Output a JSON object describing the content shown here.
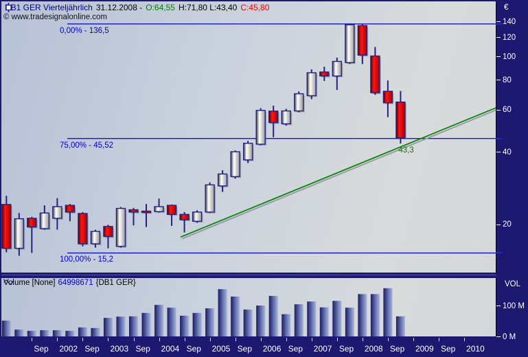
{
  "legend": {
    "symbol": "DB1 GER",
    "timeframe": "Vierteljährlich",
    "date": "31.12.2008 -",
    "open": "O:64,55",
    "high_low": "H:71,80 L:43,40",
    "close": "C:45,80"
  },
  "watermark": "© www.tradesignalonline.com",
  "volume_header": {
    "indicator": "Volume [None]",
    "value": "64998671",
    "instrument": "{DB1 GER}"
  },
  "colors": {
    "up_body_dark": "#3f3f3f",
    "up_body_light": "#ffffff",
    "up_body_edge": "#999999",
    "down_body_dark": "#4d0000",
    "down_body_light": "#ff1616",
    "down_body_edge": "#a80000",
    "outline": "#23237d",
    "vol_dark": "#1b1b62",
    "vol_light": "#a9b3d8",
    "fib_line": "#0000c0",
    "trend_line": "#0b840b",
    "trend_shadow": "#989da8",
    "axis_panel": "#1d1971",
    "axis_text": "#ffffff"
  },
  "chart_data": {
    "type": "candlestick",
    "title": "DB1 GER Vierteljährlich",
    "period": "quarterly",
    "price_axis": {
      "unit": "€",
      "scale": "log",
      "ticks": [
        140,
        120,
        100,
        80,
        60,
        40,
        20
      ]
    },
    "volume_axis": {
      "label": "VOL",
      "ticks": [
        {
          "label": "100 M",
          "value": 100
        },
        {
          "label": "0 M",
          "value": 0
        }
      ]
    },
    "x_axis": {
      "labels": [
        "Sep",
        "2002",
        "Sep",
        "2003",
        "Sep",
        "2004",
        "Sep",
        "2005",
        "Sep",
        "2006",
        "Sep",
        "2007",
        "Sep",
        "2008",
        "Sep",
        "2009",
        "Sep",
        "2010"
      ]
    },
    "fib_levels": [
      {
        "label": "0,00% - 136,5",
        "value": 136.5
      },
      {
        "label": "75,00% - 45,52",
        "value": 45.52
      },
      {
        "label": "100,00% - 15,2",
        "value": 15.2
      }
    ],
    "trendline": {
      "label": "43,3",
      "value_at_last_bar": 43.3,
      "from": {
        "bar": 13.7,
        "price": 17.7
      },
      "to": {
        "bar": 38.5,
        "price": 61.1
      }
    },
    "candles": [
      {
        "t": "2001-Q1",
        "o": 24.2,
        "h": 26.3,
        "l": 15.3,
        "c": 15.9,
        "v": 51
      },
      {
        "t": "2001-Q2",
        "o": 15.9,
        "h": 22.3,
        "l": 14.8,
        "c": 21.1,
        "v": 22
      },
      {
        "t": "2001-Q3",
        "o": 21.2,
        "h": 21.5,
        "l": 15.2,
        "c": 19.5,
        "v": 18
      },
      {
        "t": "2001-Q4",
        "o": 19.2,
        "h": 24.0,
        "l": 19.0,
        "c": 22.3,
        "v": 20
      },
      {
        "t": "2002-Q1",
        "o": 21.2,
        "h": 25.7,
        "l": 19.0,
        "c": 23.7,
        "v": 20
      },
      {
        "t": "2002-Q2",
        "o": 24.0,
        "h": 24.3,
        "l": 20.6,
        "c": 22.5,
        "v": 18
      },
      {
        "t": "2002-Q3",
        "o": 22.2,
        "h": 22.5,
        "l": 16.2,
        "c": 16.6,
        "v": 29
      },
      {
        "t": "2002-Q4",
        "o": 16.6,
        "h": 19.0,
        "l": 16.0,
        "c": 18.7,
        "v": 27
      },
      {
        "t": "2003-Q1",
        "o": 19.6,
        "h": 19.9,
        "l": 15.9,
        "c": 17.8,
        "v": 60
      },
      {
        "t": "2003-Q2",
        "o": 16.2,
        "h": 23.6,
        "l": 16.0,
        "c": 23.3,
        "v": 64
      },
      {
        "t": "2003-Q3",
        "o": 23.0,
        "h": 23.4,
        "l": 19.8,
        "c": 22.5,
        "v": 65
      },
      {
        "t": "2003-Q4",
        "o": 22.7,
        "h": 24.3,
        "l": 19.5,
        "c": 22.4,
        "v": 76
      },
      {
        "t": "2004-Q1",
        "o": 22.6,
        "h": 25.6,
        "l": 22.4,
        "c": 23.7,
        "v": 102
      },
      {
        "t": "2004-Q2",
        "o": 24.0,
        "h": 24.2,
        "l": 19.7,
        "c": 22.0,
        "v": 93
      },
      {
        "t": "2004-Q3",
        "o": 22.0,
        "h": 22.5,
        "l": 18.5,
        "c": 20.9,
        "v": 67
      },
      {
        "t": "2004-Q4",
        "o": 20.6,
        "h": 22.9,
        "l": 20.3,
        "c": 22.5,
        "v": 76
      },
      {
        "t": "2005-Q1",
        "o": 22.5,
        "h": 29.9,
        "l": 22.3,
        "c": 29.2,
        "v": 91
      },
      {
        "t": "2005-Q2",
        "o": 28.9,
        "h": 33.6,
        "l": 27.3,
        "c": 32.4,
        "v": 153
      },
      {
        "t": "2005-Q3",
        "o": 31.6,
        "h": 40.6,
        "l": 31.0,
        "c": 40.1,
        "v": 129
      },
      {
        "t": "2005-Q4",
        "o": 37.1,
        "h": 44.5,
        "l": 36.0,
        "c": 43.5,
        "v": 87
      },
      {
        "t": "2006-Q1",
        "o": 43.1,
        "h": 60.9,
        "l": 42.7,
        "c": 59.6,
        "v": 100
      },
      {
        "t": "2006-Q2",
        "o": 59.2,
        "h": 62.4,
        "l": 46.1,
        "c": 53.0,
        "v": 131
      },
      {
        "t": "2006-Q3",
        "o": 52.4,
        "h": 60.5,
        "l": 51.5,
        "c": 59.3,
        "v": 72
      },
      {
        "t": "2006-Q4",
        "o": 59.3,
        "h": 71.5,
        "l": 58.5,
        "c": 69.9,
        "v": 104
      },
      {
        "t": "2007-Q1",
        "o": 68.6,
        "h": 88.3,
        "l": 66.4,
        "c": 85.5,
        "v": 113
      },
      {
        "t": "2007-Q2",
        "o": 86.1,
        "h": 90.6,
        "l": 79.0,
        "c": 82.9,
        "v": 94
      },
      {
        "t": "2007-Q3",
        "o": 82.9,
        "h": 98.9,
        "l": 72.5,
        "c": 95.3,
        "v": 115
      },
      {
        "t": "2007-Q4",
        "o": 94.2,
        "h": 136.5,
        "l": 93.0,
        "c": 135.4,
        "v": 93
      },
      {
        "t": "2008-Q1",
        "o": 134.3,
        "h": 135.8,
        "l": 92.9,
        "c": 101.2,
        "v": 137
      },
      {
        "t": "2008-Q2",
        "o": 100.4,
        "h": 109.5,
        "l": 69.2,
        "c": 70.6,
        "v": 137
      },
      {
        "t": "2008-Q3",
        "o": 71.6,
        "h": 79.4,
        "l": 55.9,
        "c": 64.1,
        "v": 156
      },
      {
        "t": "2008-Q4",
        "o": 64.55,
        "h": 71.8,
        "l": 43.4,
        "c": 45.8,
        "v": 65
      }
    ],
    "volume_unit": "millions"
  }
}
